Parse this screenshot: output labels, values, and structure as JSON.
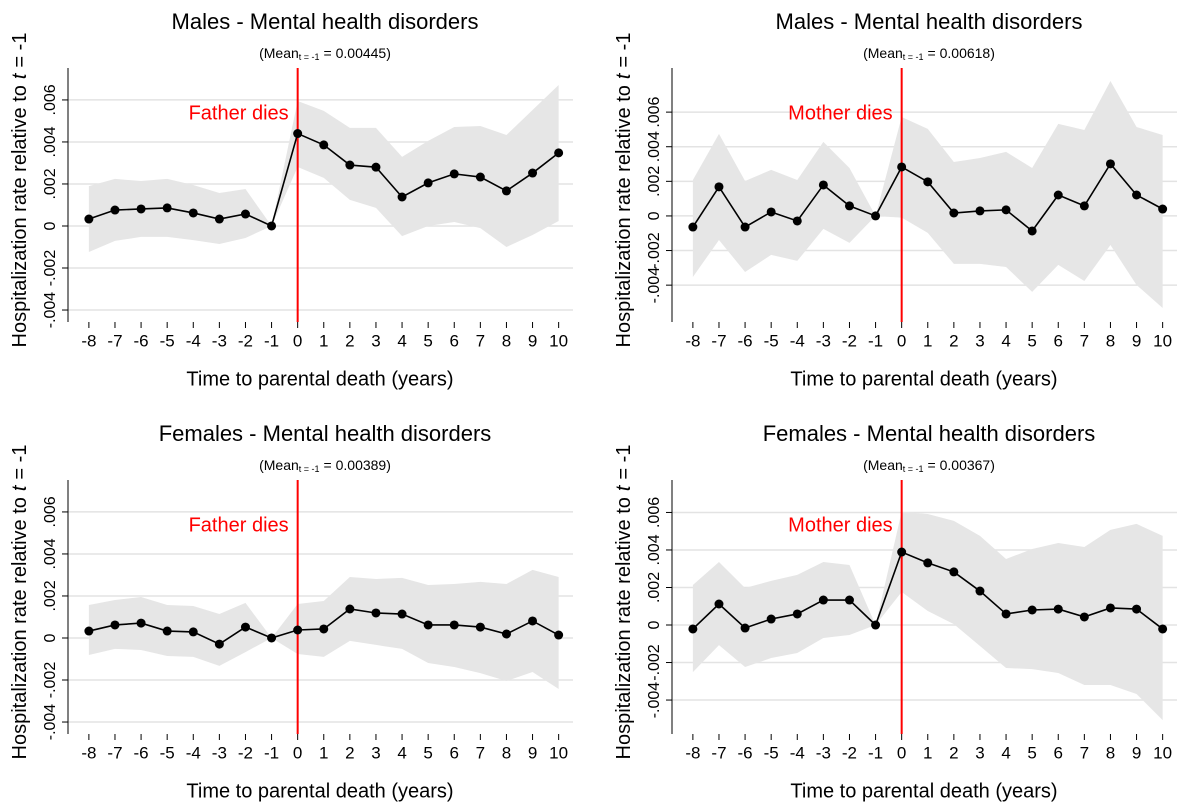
{
  "chart_data": [
    {
      "type": "line",
      "title": "Males - Mental health disorders",
      "subtitle": {
        "prefix": "(Mean",
        "subscript": "t = -1",
        "suffix": "= 0.00445)"
      },
      "annotation": "Father dies",
      "vline": 0,
      "vline_color": "#ff0000",
      "xlabel": "Time to parental death (years)",
      "ylabel": {
        "text": "Hospitalization rate relative to",
        "italic": "t",
        "suffix": "= -1"
      },
      "x": [
        -8,
        -7,
        -6,
        -5,
        -4,
        -3,
        -2,
        -1,
        0,
        1,
        2,
        3,
        4,
        5,
        6,
        7,
        8,
        9,
        10
      ],
      "values": [
        0.00033,
        0.00076,
        0.00081,
        0.00086,
        0.00062,
        0.00033,
        0.00057,
        0,
        0.0044,
        0.00386,
        0.0029,
        0.0028,
        0.00138,
        0.00205,
        0.00248,
        0.00233,
        0.00167,
        0.00252,
        0.00348
      ],
      "ci_high": [
        0.0019,
        0.00224,
        0.00214,
        0.00224,
        0.00195,
        0.00157,
        0.00176,
        0,
        0.00595,
        0.00548,
        0.00467,
        0.00467,
        0.00329,
        0.00405,
        0.00471,
        0.00476,
        0.00433,
        0.00552,
        0.00671
      ],
      "ci_low": [
        -0.00124,
        -0.00071,
        -0.00052,
        -0.00052,
        -0.00067,
        -0.00086,
        -0.00057,
        0,
        0.00281,
        0.00229,
        0.00124,
        0.00086,
        -0.00048,
        0,
        0.00019,
        -0.0001,
        -0.001,
        -0.00043,
        0.00024
      ],
      "color": "#000000",
      "band_color": "#e6e6e6",
      "xlim": [
        -8.8,
        10.55
      ],
      "xticks": [
        -8,
        -7,
        -6,
        -5,
        -4,
        -3,
        -2,
        -1,
        0,
        1,
        2,
        3,
        4,
        5,
        6,
        7,
        8,
        9,
        10
      ],
      "ylim": [
        -0.00457,
        0.00752
      ],
      "yticks": [
        {
          "value": -0.004,
          "label": "-.004"
        },
        {
          "value": -0.002,
          "label": "-.002"
        },
        0,
        {
          "value": 0.002,
          "label": ".002"
        },
        {
          "value": 0.004,
          "label": ".004"
        },
        {
          "value": 0.006,
          "label": ".006"
        }
      ],
      "grid": true
    },
    {
      "type": "line",
      "title": "Males - Mental health disorders",
      "subtitle": {
        "prefix": "(Mean",
        "subscript": "t = -1",
        "suffix": "= 0.00618)"
      },
      "annotation": "Mother dies",
      "vline": 0,
      "vline_color": "#ff0000",
      "xlabel": "Time to parental death (years)",
      "ylabel": {
        "text": "Hospitalization rate relative to",
        "italic": "t",
        "suffix": "= -1"
      },
      "x": [
        -8,
        -7,
        -6,
        -5,
        -4,
        -3,
        -2,
        -1,
        0,
        1,
        2,
        3,
        4,
        5,
        6,
        7,
        8,
        9,
        10
      ],
      "values": [
        -0.00064,
        0.00168,
        -0.00064,
        0.00023,
        -0.00029,
        0.00179,
        0.00058,
        0,
        0.00283,
        0.00197,
        0.00017,
        0.00029,
        0.00035,
        -0.00087,
        0.00121,
        0.00058,
        0.00301,
        0.00121,
        0.0004
      ],
      "ci_high": [
        0.00208,
        0.00474,
        0.00202,
        0.00266,
        0.00208,
        0.00428,
        0.00277,
        0,
        0.00572,
        0.00503,
        0.00312,
        0.00335,
        0.0037,
        0.00277,
        0.00532,
        0.00497,
        0.0078,
        0.00514,
        0.00468
      ],
      "ci_low": [
        -0.00353,
        -0.00139,
        -0.00324,
        -0.00225,
        -0.0026,
        -0.00075,
        -0.00156,
        0,
        -0.0001,
        -0.00098,
        -0.00277,
        -0.00277,
        -0.00295,
        -0.00439,
        -0.00283,
        -0.00376,
        -0.00168,
        -0.00399,
        -0.00532
      ],
      "color": "#000000",
      "band_color": "#e6e6e6",
      "xlim": [
        -8.8,
        10.55
      ],
      "xticks": [
        -8,
        -7,
        -6,
        -5,
        -4,
        -3,
        -2,
        -1,
        0,
        1,
        2,
        3,
        4,
        5,
        6,
        7,
        8,
        9,
        10
      ],
      "ylim": [
        -0.00613,
        0.00855
      ],
      "yticks": [
        {
          "value": -0.004,
          "label": "-.004"
        },
        {
          "value": -0.002,
          "label": "-.002"
        },
        0,
        {
          "value": 0.002,
          "label": ".002"
        },
        {
          "value": 0.004,
          "label": ".004"
        },
        {
          "value": 0.006,
          "label": ".006"
        }
      ],
      "grid": true
    },
    {
      "type": "line",
      "title": "Females - Mental health disorders",
      "subtitle": {
        "prefix": "(Mean",
        "subscript": "t = -1",
        "suffix": "= 0.00389)"
      },
      "annotation": "Father dies",
      "vline": 0,
      "vline_color": "#ff0000",
      "xlabel": "Time to parental death (years)",
      "ylabel": {
        "text": "Hospitalization rate relative to",
        "italic": "t",
        "suffix": "= -1"
      },
      "x": [
        -8,
        -7,
        -6,
        -5,
        -4,
        -3,
        -2,
        -1,
        0,
        1,
        2,
        3,
        4,
        5,
        6,
        7,
        8,
        9,
        10
      ],
      "values": [
        0.00033,
        0.00062,
        0.00071,
        0.00033,
        0.00029,
        -0.00029,
        0.00052,
        0,
        0.00038,
        0.00043,
        0.00138,
        0.00119,
        0.00114,
        0.00062,
        0.00062,
        0.00052,
        0.00019,
        0.00081,
        0.00014
      ],
      "ci_high": [
        0.00157,
        0.00181,
        0.00195,
        0.00157,
        0.00152,
        0.00114,
        0.00167,
        0,
        0.00162,
        0.00176,
        0.0029,
        0.00281,
        0.00286,
        0.00252,
        0.00257,
        0.00267,
        0.00257,
        0.00324,
        0.0029
      ],
      "ci_low": [
        -0.00081,
        -0.00052,
        -0.00057,
        -0.00086,
        -0.0009,
        -0.00133,
        -0.00067,
        0,
        -0.00076,
        -0.0009,
        -0.00014,
        -0.00033,
        -0.00052,
        -0.00119,
        -0.00138,
        -0.00167,
        -0.00205,
        -0.00162,
        -0.00243
      ],
      "color": "#000000",
      "band_color": "#e6e6e6",
      "xlim": [
        -8.8,
        10.55
      ],
      "xticks": [
        -8,
        -7,
        -6,
        -5,
        -4,
        -3,
        -2,
        -1,
        0,
        1,
        2,
        3,
        4,
        5,
        6,
        7,
        8,
        9,
        10
      ],
      "ylim": [
        -0.00457,
        0.00752
      ],
      "yticks": [
        {
          "value": -0.004,
          "label": "-.004"
        },
        {
          "value": -0.002,
          "label": "-.002"
        },
        0,
        {
          "value": 0.002,
          "label": ".002"
        },
        {
          "value": 0.004,
          "label": ".004"
        },
        {
          "value": 0.006,
          "label": ".006"
        }
      ],
      "grid": true
    },
    {
      "type": "line",
      "title": "Females - Mental health disorders",
      "subtitle": {
        "prefix": "(Mean",
        "subscript": "t = -1",
        "suffix": "= 0.00367)"
      },
      "annotation": "Mother dies",
      "vline": 0,
      "vline_color": "#ff0000",
      "xlabel": "Time to parental death (years)",
      "ylabel": {
        "text": "Hospitalization rate relative to",
        "italic": "t",
        "suffix": "= -1"
      },
      "x": [
        -8,
        -7,
        -6,
        -5,
        -4,
        -3,
        -2,
        -1,
        0,
        1,
        2,
        3,
        4,
        5,
        6,
        7,
        8,
        9,
        10
      ],
      "values": [
        -0.00021,
        0.00112,
        -0.00016,
        0.00032,
        0.00059,
        0.00133,
        0.00133,
        0,
        0.00389,
        0.00331,
        0.00283,
        0.00181,
        0.00059,
        0.0008,
        0.00085,
        0.00043,
        0.00091,
        0.00085,
        -0.00021
      ],
      "ci_high": [
        0.00213,
        0.00336,
        0.00197,
        0.00235,
        0.00267,
        0.00336,
        0.0032,
        0,
        0.00603,
        0.00592,
        0.00555,
        0.00475,
        0.00352,
        0.00405,
        0.00437,
        0.00416,
        0.00507,
        0.00539,
        0.00475
      ],
      "ci_low": [
        -0.00251,
        -0.00107,
        -0.00224,
        -0.00176,
        -0.00149,
        -0.00069,
        -0.00053,
        0,
        0.00176,
        0.00075,
        5e-05,
        -0.00112,
        -0.00229,
        -0.00235,
        -0.00256,
        -0.0032,
        -0.0032,
        -0.00368,
        -0.00507
      ],
      "color": "#000000",
      "band_color": "#e6e6e6",
      "xlim": [
        -8.8,
        10.55
      ],
      "xticks": [
        -8,
        -7,
        -6,
        -5,
        -4,
        -3,
        -2,
        -1,
        0,
        1,
        2,
        3,
        4,
        5,
        6,
        7,
        8,
        9,
        10
      ],
      "ylim": [
        -0.00581,
        0.00773
      ],
      "yticks": [
        {
          "value": -0.004,
          "label": "-.004"
        },
        {
          "value": -0.002,
          "label": "-.002"
        },
        0,
        {
          "value": 0.002,
          "label": ".002"
        },
        {
          "value": 0.004,
          "label": ".004"
        },
        {
          "value": 0.006,
          "label": ".006"
        }
      ],
      "grid": true
    }
  ]
}
